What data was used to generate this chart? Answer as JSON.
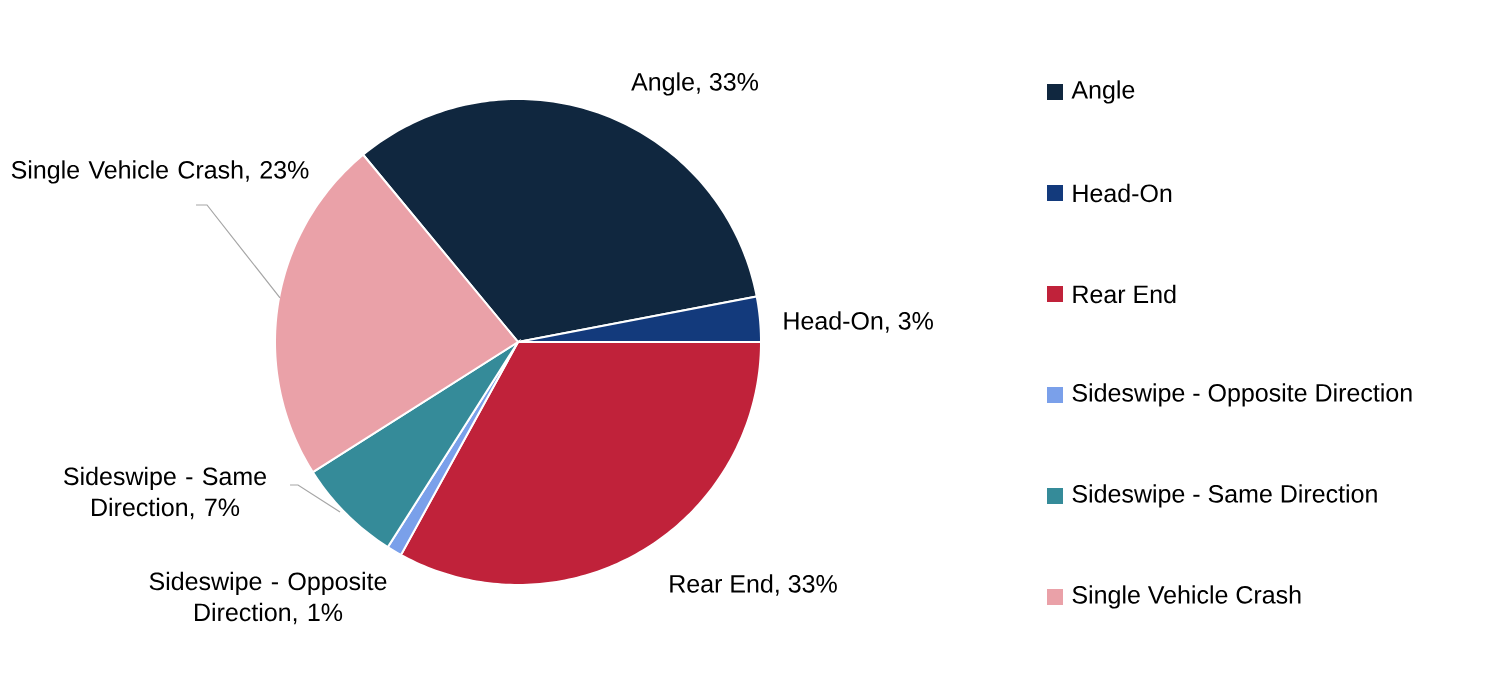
{
  "chart_data": {
    "type": "pie",
    "categories": [
      "Angle",
      "Head-On",
      "Rear End",
      "Sideswipe - Opposite Direction",
      "Sideswipe - Same Direction",
      "Single Vehicle Crash"
    ],
    "values": [
      33,
      3,
      33,
      1,
      7,
      23
    ],
    "value_labels": [
      "Angle, 33%",
      "Head-On, 3%",
      "Rear End, 33%",
      "Sideswipe - Opposite Direction, 1%",
      "Sideswipe - Same Direction, 7%",
      "Single Vehicle Crash, 23%"
    ],
    "colors": [
      "#10273f",
      "#133a7c",
      "#c0223a",
      "#7aa0ea",
      "#358b99",
      "#eaa1a8"
    ],
    "legend": "right"
  }
}
